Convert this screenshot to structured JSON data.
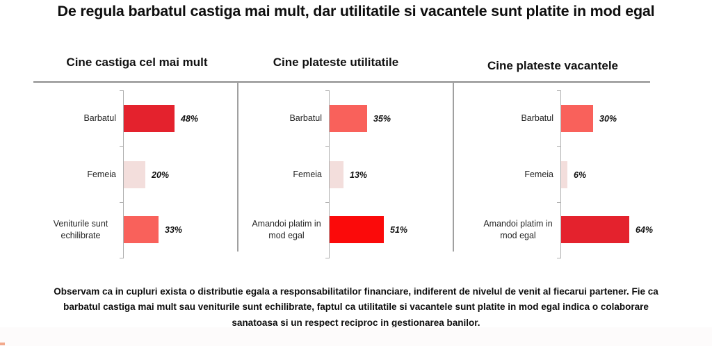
{
  "page": {
    "title": "De regula barbatul castiga mai mult, dar utilitatile si vacantele sunt platite in mod egal",
    "footer": "Observam ca in cupluri exista o distributie egala a responsabilitatilor financiare, indiferent de nivelul de venit al fiecarui partener. Fie ca barbatul castiga mai mult sau veniturile sunt echilibrate, faptul ca utilitatile si vacantele sunt platite in mod egal indica o colaborare sanatoasa si un respect reciproc in gestionarea banilor."
  },
  "colors": {
    "strong_red": "#e4222d",
    "coral_red": "#f9615b",
    "pale_pink": "#f3dedc",
    "bright_red": "#fb0a0a",
    "line_gray": "#8c8c8c"
  },
  "chart_data": [
    {
      "type": "bar",
      "orientation": "horizontal",
      "title": "Cine castiga cel mai mult",
      "categories": [
        "Barbatul",
        "Femeia",
        "Veniturile sunt echilibrate"
      ],
      "values": [
        48,
        20,
        33
      ],
      "labels": [
        "48%",
        "20%",
        "33%"
      ],
      "bar_colors": [
        "#e4222d",
        "#f3dedc",
        "#f9615b"
      ],
      "xlim": [
        0,
        100
      ],
      "grid": false,
      "legend": "none"
    },
    {
      "type": "bar",
      "orientation": "horizontal",
      "title": "Cine plateste utilitatile",
      "categories": [
        "Barbatul",
        "Femeia",
        "Amandoi platim in mod egal"
      ],
      "values": [
        35,
        13,
        51
      ],
      "labels": [
        "35%",
        "13%",
        "51%"
      ],
      "bar_colors": [
        "#f9615b",
        "#f3dedc",
        "#fb0a0a"
      ],
      "xlim": [
        0,
        100
      ],
      "grid": false,
      "legend": "none"
    },
    {
      "type": "bar",
      "orientation": "horizontal",
      "title": "Cine plateste vacantele",
      "categories": [
        "Barbatul",
        "Femeia",
        "Amandoi platim in mod egal"
      ],
      "values": [
        30,
        6,
        64
      ],
      "labels": [
        "30%",
        "6%",
        "64%"
      ],
      "bar_colors": [
        "#f9615b",
        "#f3dedc",
        "#e4222d"
      ],
      "xlim": [
        0,
        100
      ],
      "grid": false,
      "legend": "none"
    }
  ]
}
